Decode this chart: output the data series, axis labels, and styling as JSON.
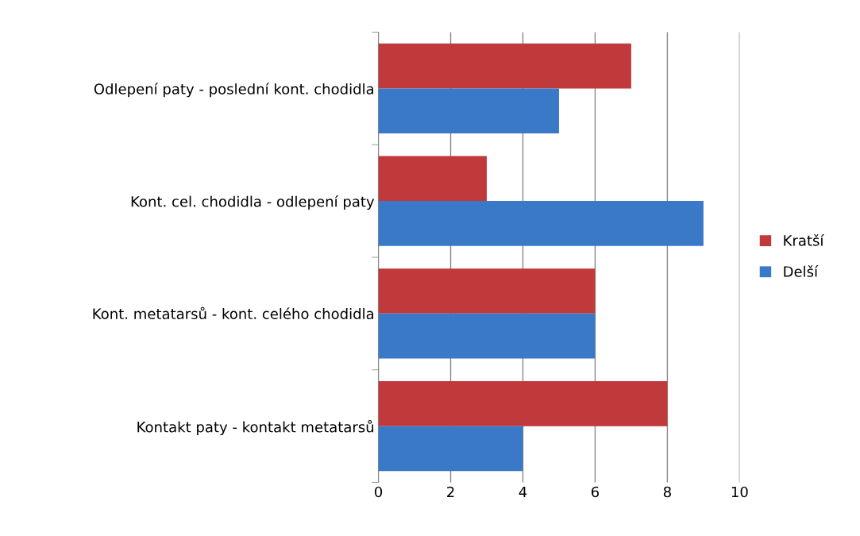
{
  "chart_data": {
    "type": "bar",
    "orientation": "horizontal",
    "categories": [
      "Odlepení paty - poslední kont. chodidla",
      "Kont. cel. chodidla - odlepení paty",
      "Kont. metatarsů - kont. celého chodidla",
      "Kontakt paty - kontakt metatarsů"
    ],
    "series": [
      {
        "name": "Kratší",
        "color": "#c0393b",
        "values": [
          7,
          3,
          6,
          8
        ]
      },
      {
        "name": "Delší",
        "color": "#3a78c8",
        "values": [
          5,
          9,
          6,
          4
        ]
      }
    ],
    "xlim": [
      0,
      10
    ],
    "xticks": [
      0,
      2,
      4,
      6,
      8,
      10
    ],
    "grid": "x",
    "legend": "right"
  }
}
